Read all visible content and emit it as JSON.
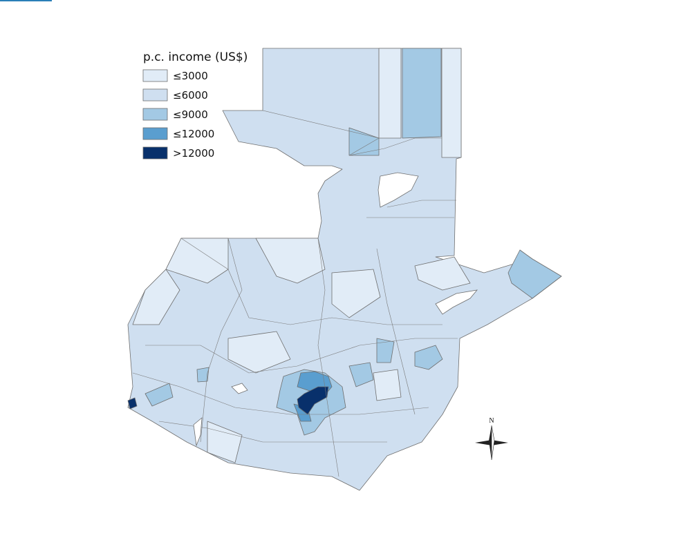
{
  "legend": {
    "title": "p.c. income (US$)",
    "items": [
      {
        "label": "≤3000",
        "color": "#e1ecf7"
      },
      {
        "label": "≤6000",
        "color": "#cfdff0"
      },
      {
        "label": "≤9000",
        "color": "#a3c9e4"
      },
      {
        "label": "≤12000",
        "color": "#5a9ecf"
      },
      {
        "label": ">12000",
        "color": "#08306b"
      }
    ]
  },
  "compass": {
    "label": "N"
  }
}
